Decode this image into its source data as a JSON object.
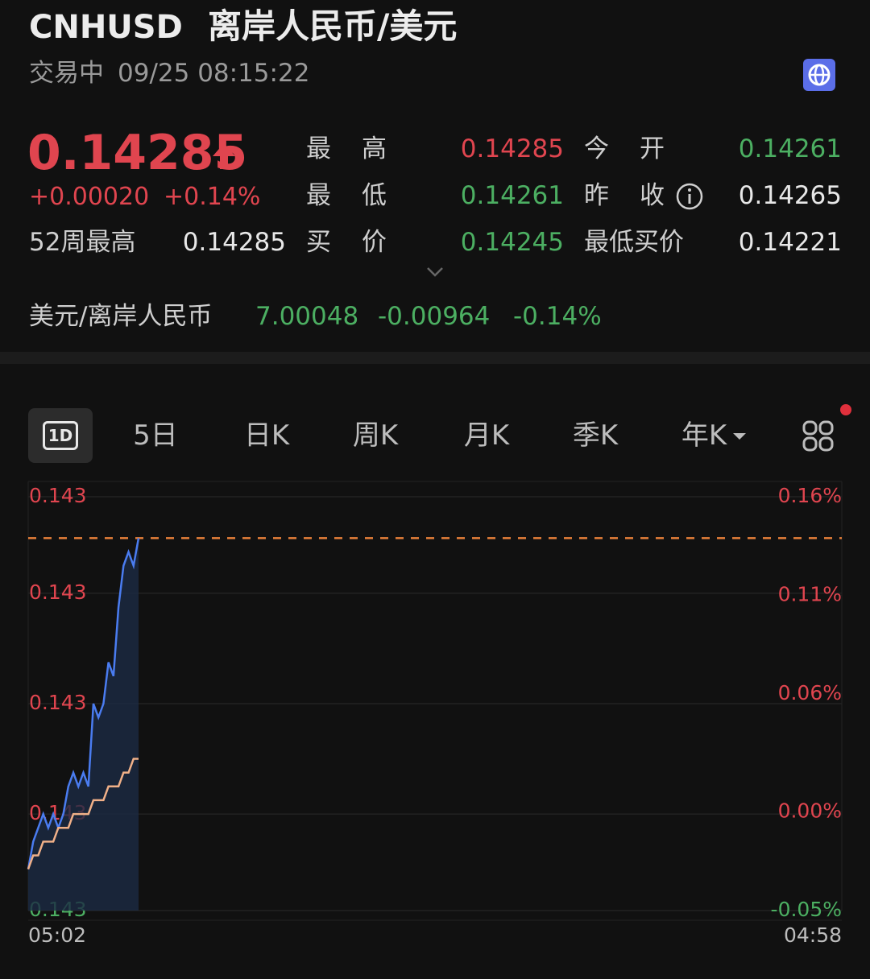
{
  "header": {
    "symbol": "CNHUSD",
    "name": "离岸人民币/美元",
    "status": "交易中",
    "time": "09/25 08:15:22"
  },
  "quote": {
    "price": "0.14285",
    "change": "+0.00020",
    "change_pct": "+0.14%",
    "stats": [
      {
        "label": "最高",
        "value": "0.14285",
        "color": "#e0454f"
      },
      {
        "label": "今开",
        "value": "0.14261",
        "color": "#4caf62"
      },
      {
        "label": "最低",
        "value": "0.14261",
        "color": "#4caf62"
      },
      {
        "label": "昨收",
        "value": "0.14265",
        "color": "#e8e8e8"
      },
      {
        "label": "52周最高",
        "value": "0.14285",
        "color": "#e8e8e8"
      },
      {
        "label": "买价",
        "value": "0.14245",
        "color": "#4caf62"
      },
      {
        "label": "最低买价",
        "value": "0.14221",
        "color": "#e8e8e8"
      }
    ]
  },
  "inverse": {
    "label": "美元/离岸人民币",
    "value": "7.00048",
    "change": "-0.00964",
    "change_pct": "-0.14%"
  },
  "tabs": [
    "1D",
    "5日",
    "日K",
    "周K",
    "月K",
    "季K",
    "年K"
  ],
  "chart_data": {
    "type": "line",
    "xlabels": [
      "05:02",
      "04:58"
    ],
    "series": [
      {
        "color": "#4a7cf0",
        "values": [
          0.14261,
          0.14263,
          0.14264,
          0.14265,
          0.14264,
          0.14265,
          0.14264,
          0.14265,
          0.14267,
          0.14268,
          0.14267,
          0.14268,
          0.14267,
          0.14273,
          0.14272,
          0.14273,
          0.14276,
          0.14275,
          0.1428,
          0.14283,
          0.14284,
          0.14283,
          0.14285
        ]
      },
      {
        "color": "#f0b088",
        "values": [
          0.14261,
          0.14262,
          0.14262,
          0.14263,
          0.14263,
          0.14263,
          0.14264,
          0.14264,
          0.14264,
          0.14265,
          0.14265,
          0.14265,
          0.14265,
          0.14266,
          0.14266,
          0.14266,
          0.14267,
          0.14267,
          0.14267,
          0.14268,
          0.14268,
          0.14269,
          0.14269
        ]
      }
    ],
    "reference_line": 0.14285,
    "reference_color": "#e8803a",
    "base": 0.14265,
    "ylim": [
      0.14258,
      0.14288
    ],
    "yticks": [
      {
        "value": 0.14288,
        "label": "0.143"
      },
      {
        "value": 0.14281,
        "label": "0.143"
      },
      {
        "value": 0.14273,
        "label": "0.143"
      },
      {
        "value": 0.14265,
        "label": "0.143"
      },
      {
        "value": 0.14258,
        "label": "0.143"
      }
    ],
    "y2lim": [
      -0.05,
      0.16
    ],
    "y2ticks": [
      {
        "value": 0.16,
        "label": "0.16%"
      },
      {
        "value": 0.11,
        "label": "0.11%"
      },
      {
        "value": 0.06,
        "label": "0.06%"
      },
      {
        "value": 0,
        "label": "0.00%"
      },
      {
        "value": -0.05,
        "label": "-0.05%"
      }
    ],
    "grid": true
  }
}
